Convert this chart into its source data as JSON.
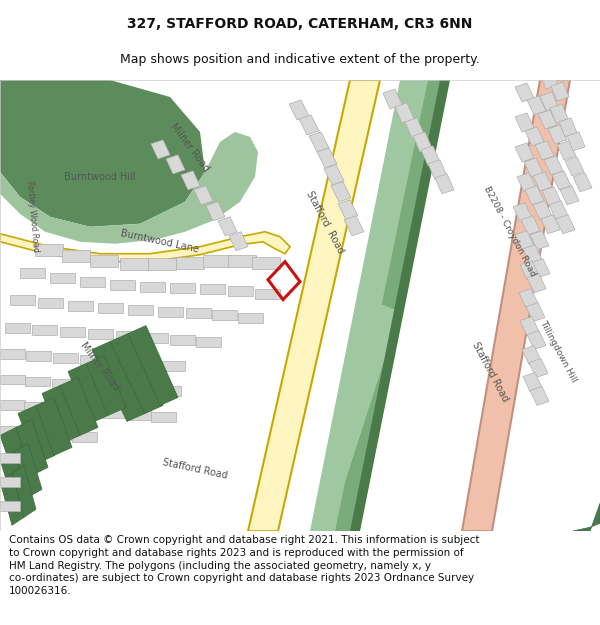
{
  "title": "327, STAFFORD ROAD, CATERHAM, CR3 6NN",
  "subtitle": "Map shows position and indicative extent of the property.",
  "footer": "Contains OS data © Crown copyright and database right 2021. This information is subject\nto Crown copyright and database rights 2023 and is reproduced with the permission of\nHM Land Registry. The polygons (including the associated geometry, namely x, y\nco-ordinates) are subject to Crown copyright and database rights 2023 Ordnance Survey\n100026316.",
  "bg_color": "#ffffff",
  "colors": {
    "park_dark": "#5c8c5c",
    "park_light": "#9ec49e",
    "road_yellow_fill": "#fef5c0",
    "road_yellow_border": "#c8a800",
    "road_red_fill": "#f0c0aa",
    "road_red_border": "#c09080",
    "bldg_gray": "#d8d8d8",
    "bldg_outline": "#b0b0b0",
    "green_dark_strip": "#4a7a4a",
    "green_mid_strip": "#7aab7a",
    "green_light_strip": "#a0c8a0",
    "dark_bldg": "#4a7a4a",
    "plot_red": "#cc1111",
    "road_text": "#555555"
  },
  "title_fs": 10,
  "subtitle_fs": 9,
  "footer_fs": 7.5
}
